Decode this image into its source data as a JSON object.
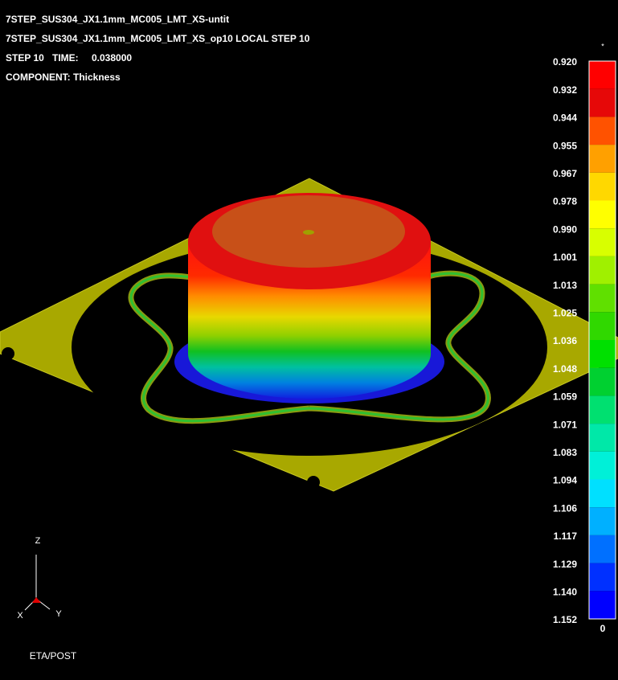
{
  "header": {
    "line1": "7STEP_SUS304_JX1.1mm_MC005_LMT_XS-untit",
    "line2": "7STEP_SUS304_JX1.1mm_MC005_LMT_XS_op10  LOCAL STEP 10",
    "step": "STEP 10",
    "time_label": "TIME:",
    "time": "0.038000",
    "component": "COMPONENT: Thickness"
  },
  "legend": {
    "top_marker": "*",
    "bottom_marker": "0",
    "labels": [
      "0.920",
      "0.932",
      "0.944",
      "0.955",
      "0.967",
      "0.978",
      "0.990",
      "1.001",
      "1.013",
      "1.025",
      "1.036",
      "1.048",
      "1.059",
      "1.071",
      "1.083",
      "1.094",
      "1.106",
      "1.117",
      "1.129",
      "1.140",
      "1.152"
    ],
    "colors": [
      "#ff0000",
      "#e60808",
      "#ff5200",
      "#ffa000",
      "#ffd800",
      "#ffff00",
      "#d8ff00",
      "#a0f000",
      "#60e000",
      "#30d800",
      "#00e000",
      "#00d030",
      "#00e070",
      "#00e8a8",
      "#00f0d8",
      "#00e0ff",
      "#00b0ff",
      "#0070ff",
      "#0030ff",
      "#0000ff"
    ]
  },
  "triad": {
    "z": "Z",
    "x": "X",
    "y": "Y"
  },
  "footer": "ETA/POST"
}
